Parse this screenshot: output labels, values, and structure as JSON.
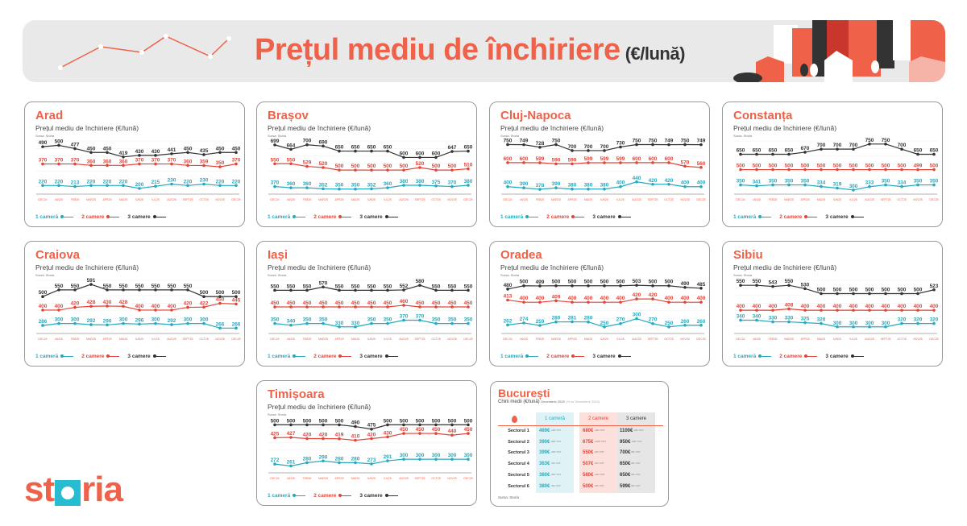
{
  "header": {
    "title": "Prețul mediu de închiriere",
    "unit": "(€/lună)"
  },
  "common": {
    "subtitle": "Prețul mediu de închiriere (€/lună)",
    "source": "Sursa: Storia",
    "legend": [
      "1 cameră",
      "2 camere",
      "3 camere"
    ],
    "colors": {
      "one_room": "#27a9bd",
      "two_rooms": "#e1453a",
      "three_rooms": "#333333",
      "brand": "#ef6148"
    }
  },
  "logo": {
    "text_pre": "st",
    "text_post": "ria"
  },
  "chart_data": [
    {
      "type": "line",
      "title": "Arad",
      "xlabel": "",
      "ylabel": "€/lună",
      "categories": [
        "DEC24",
        "IAN25",
        "FEB25",
        "MAR25",
        "APR25",
        "MAI25",
        "IUN25",
        "IUL25",
        "AUG25",
        "SEPT25",
        "OCT25",
        "NOV25",
        "DEC25"
      ],
      "series": [
        {
          "name": "1 cameră",
          "values": [
            220,
            220,
            213,
            220,
            220,
            220,
            200,
            215,
            230,
            220,
            230,
            220,
            220
          ]
        },
        {
          "name": "2 camere",
          "values": [
            370,
            370,
            370,
            360,
            360,
            360,
            370,
            370,
            370,
            360,
            359,
            350,
            370
          ]
        },
        {
          "name": "3 camere",
          "values": [
            490,
            500,
            477,
            450,
            450,
            419,
            430,
            430,
            441,
            450,
            435,
            450,
            450
          ]
        }
      ]
    },
    {
      "type": "line",
      "title": "Brașov",
      "xlabel": "",
      "ylabel": "€/lună",
      "categories": [
        "DEC24",
        "IAN25",
        "FEB25",
        "MAR25",
        "APR25",
        "MAI25",
        "IUN25",
        "IUL25",
        "AUG25",
        "SEPT25",
        "OCT25",
        "NOV25",
        "DEC25"
      ],
      "series": [
        {
          "name": "1 cameră",
          "values": [
            370,
            360,
            360,
            352,
            350,
            350,
            352,
            360,
            380,
            380,
            375,
            370,
            380
          ]
        },
        {
          "name": "2 camere",
          "values": [
            550,
            550,
            529,
            520,
            500,
            500,
            500,
            500,
            500,
            520,
            500,
            500,
            510
          ]
        },
        {
          "name": "3 camere",
          "values": [
            699,
            664,
            700,
            690,
            650,
            650,
            650,
            650,
            600,
            600,
            600,
            647,
            650
          ]
        }
      ]
    },
    {
      "type": "line",
      "title": "Cluj-Napoca",
      "xlabel": "",
      "ylabel": "€/lună",
      "categories": [
        "DEC24",
        "IAN25",
        "FEB25",
        "MAR25",
        "APR25",
        "MAI25",
        "IUN25",
        "IUL25",
        "AUG25",
        "SEPT25",
        "OCT25",
        "NOV25",
        "DEC25"
      ],
      "series": [
        {
          "name": "1 cameră",
          "values": [
            400,
            390,
            378,
            390,
            380,
            380,
            380,
            400,
            440,
            420,
            420,
            400,
            400
          ]
        },
        {
          "name": "2 camere",
          "values": [
            600,
            600,
            599,
            590,
            590,
            599,
            599,
            599,
            600,
            600,
            600,
            570,
            560
          ]
        },
        {
          "name": "3 camere",
          "values": [
            750,
            749,
            728,
            750,
            700,
            700,
            700,
            730,
            750,
            750,
            749,
            750,
            749
          ]
        }
      ]
    },
    {
      "type": "line",
      "title": "Constanța",
      "xlabel": "",
      "ylabel": "€/lună",
      "categories": [
        "DEC24",
        "IAN25",
        "FEB25",
        "MAR25",
        "APR25",
        "MAI25",
        "IUN25",
        "IUL25",
        "AUG25",
        "SEPT25",
        "OCT25",
        "NOV25",
        "DEC25"
      ],
      "series": [
        {
          "name": "1 cameră",
          "values": [
            350,
            341,
            350,
            350,
            350,
            334,
            319,
            300,
            333,
            350,
            334,
            350,
            350
          ]
        },
        {
          "name": "2 camere",
          "values": [
            500,
            500,
            500,
            500,
            500,
            500,
            500,
            500,
            500,
            500,
            500,
            499,
            500
          ]
        },
        {
          "name": "3 camere",
          "values": [
            650,
            650,
            650,
            650,
            670,
            700,
            700,
            700,
            750,
            750,
            700,
            650,
            650
          ]
        }
      ]
    },
    {
      "type": "line",
      "title": "Craiova",
      "xlabel": "",
      "ylabel": "€/lună",
      "categories": [
        "DEC24",
        "IAN25",
        "FEB25",
        "MAR25",
        "APR25",
        "MAI25",
        "IUN25",
        "IUL25",
        "AUG25",
        "SEPT25",
        "OCT25",
        "NOV25",
        "DEC25"
      ],
      "series": [
        {
          "name": "1 cameră",
          "values": [
            286,
            300,
            300,
            292,
            290,
            300,
            296,
            300,
            292,
            300,
            300,
            266,
            266
          ]
        },
        {
          "name": "2 camere",
          "values": [
            400,
            400,
            420,
            428,
            430,
            428,
            400,
            400,
            400,
            420,
            422,
            450,
            445
          ]
        },
        {
          "name": "3 camere",
          "values": [
            500,
            550,
            550,
            591,
            550,
            550,
            550,
            550,
            550,
            550,
            500,
            500,
            500
          ]
        }
      ]
    },
    {
      "type": "line",
      "title": "Iași",
      "xlabel": "",
      "ylabel": "€/lună",
      "categories": [
        "DEC24",
        "IAN25",
        "FEB25",
        "MAR25",
        "APR25",
        "MAI25",
        "IUN25",
        "IUL25",
        "AUG25",
        "SEPT25",
        "OCT25",
        "NOV25",
        "DEC25"
      ],
      "series": [
        {
          "name": "1 cameră",
          "values": [
            350,
            340,
            350,
            350,
            330,
            330,
            350,
            350,
            370,
            370,
            350,
            350,
            350
          ]
        },
        {
          "name": "2 camere",
          "values": [
            450,
            450,
            450,
            450,
            450,
            450,
            450,
            450,
            460,
            450,
            450,
            450,
            450
          ]
        },
        {
          "name": "3 camere",
          "values": [
            550,
            550,
            550,
            570,
            550,
            550,
            550,
            550,
            552,
            580,
            550,
            550,
            550
          ]
        }
      ]
    },
    {
      "type": "line",
      "title": "Oradea",
      "xlabel": "",
      "ylabel": "€/lună",
      "categories": [
        "DEC24",
        "IAN25",
        "FEB25",
        "MAR25",
        "APR25",
        "MAI25",
        "IUN25",
        "IUL25",
        "AUG25",
        "SEPT25",
        "OCT25",
        "NOV25",
        "DEC25"
      ],
      "series": [
        {
          "name": "1 cameră",
          "values": [
            262,
            274,
            259,
            280,
            281,
            280,
            250,
            270,
            300,
            270,
            250,
            260,
            260
          ]
        },
        {
          "name": "2 camere",
          "values": [
            413,
            400,
            400,
            409,
            400,
            400,
            400,
            400,
            420,
            420,
            400,
            400,
            400
          ]
        },
        {
          "name": "3 camere",
          "values": [
            480,
            500,
            499,
            500,
            500,
            500,
            500,
            500,
            503,
            500,
            500,
            490,
            485
          ]
        }
      ]
    },
    {
      "type": "line",
      "title": "Sibiu",
      "xlabel": "",
      "ylabel": "€/lună",
      "categories": [
        "DEC24",
        "IAN25",
        "FEB25",
        "MAR25",
        "APR25",
        "MAI25",
        "IUN25",
        "IUL25",
        "AUG25",
        "SEPT25",
        "OCT25",
        "NOV25",
        "DEC25"
      ],
      "series": [
        {
          "name": "1 cameră",
          "values": [
            340,
            340,
            330,
            330,
            325,
            320,
            300,
            300,
            300,
            300,
            320,
            320,
            320
          ]
        },
        {
          "name": "2 camere",
          "values": [
            400,
            400,
            400,
            408,
            400,
            400,
            400,
            400,
            400,
            400,
            400,
            400,
            400
          ]
        },
        {
          "name": "3 camere",
          "values": [
            550,
            550,
            543,
            550,
            530,
            500,
            500,
            500,
            500,
            500,
            500,
            500,
            523
          ]
        }
      ]
    },
    {
      "type": "line",
      "title": "Timișoara",
      "xlabel": "",
      "ylabel": "€/lună",
      "categories": [
        "DEC24",
        "IAN25",
        "FEB25",
        "MAR25",
        "APR25",
        "MAI25",
        "IUN25",
        "IUL25",
        "AUG25",
        "SEPT25",
        "OCT25",
        "NOV25",
        "DEC25"
      ],
      "series": [
        {
          "name": "1 cameră",
          "values": [
            272,
            261,
            280,
            290,
            280,
            280,
            273,
            291,
            300,
            300,
            300,
            300,
            300
          ]
        },
        {
          "name": "2 camere",
          "values": [
            425,
            427,
            420,
            420,
            419,
            410,
            420,
            430,
            450,
            450,
            450,
            440,
            450
          ]
        },
        {
          "name": "3 camere",
          "values": [
            500,
            500,
            500,
            500,
            500,
            490,
            475,
            500,
            500,
            500,
            500,
            500,
            500
          ]
        }
      ]
    },
    {
      "type": "table",
      "title": "București",
      "subtitle": "Chirii medii (€/lună) Decembrie 2025 (% vs Decembrie 2024)",
      "columns": [
        "",
        "1 cameră",
        "2 camere",
        "3 camere"
      ],
      "rows": [
        [
          "Sectorul 1",
          "469€",
          "680€",
          "1100€"
        ],
        [
          "Sectorul 2",
          "390€",
          "675€",
          "950€"
        ],
        [
          "Sectorul 3",
          "399€",
          "550€",
          "700€"
        ],
        [
          "Sectorul 4",
          "363€",
          "507€",
          "650€"
        ],
        [
          "Sectorul 5",
          "380€",
          "580€",
          "650€"
        ],
        [
          "Sectorul 6",
          "380€",
          "500€",
          "599€"
        ]
      ],
      "source": "Sursa: Storia"
    }
  ],
  "bucuresti": {
    "title": "București",
    "subtitle_main": "Chirii medii (€/lună)",
    "subtitle_date": "Decembrie 2025",
    "subtitle_cmp": "(% vs Decembrie 2024)",
    "headers": [
      "1 cameră",
      "2 camere",
      "3 camere"
    ],
    "rows": [
      {
        "label": "Sectorul 1",
        "v": [
          "469€",
          "680€",
          "1100€"
        ],
        "p": [
          "+4% YOY",
          "+4% YOY",
          "-2% YOY"
        ]
      },
      {
        "label": "Sectorul 2",
        "v": [
          "390€",
          "675€",
          "950€"
        ],
        "p": [
          "+8% YOY",
          "+12% YOY",
          "+6% YOY"
        ]
      },
      {
        "label": "Sectorul 3",
        "v": [
          "399€",
          "550€",
          "700€"
        ],
        "p": [
          "+5% YOY",
          "-2% YOY",
          "0% YOY"
        ]
      },
      {
        "label": "Sectorul 4",
        "v": [
          "363€",
          "507€",
          "650€"
        ],
        "p": [
          "-1% YOY",
          "-2% YOY",
          "0% YOY"
        ]
      },
      {
        "label": "Sectorul 5",
        "v": [
          "380€",
          "580€",
          "650€"
        ],
        "p": [
          "+5% YOY",
          "+2% YOY",
          "0% YOY"
        ]
      },
      {
        "label": "Sectorul 6",
        "v": [
          "380€",
          "500€",
          "599€"
        ],
        "p": [
          "-3% YOY",
          "-3% YOY",
          "0% YOY"
        ]
      }
    ],
    "source": "Sursa: Storia"
  }
}
